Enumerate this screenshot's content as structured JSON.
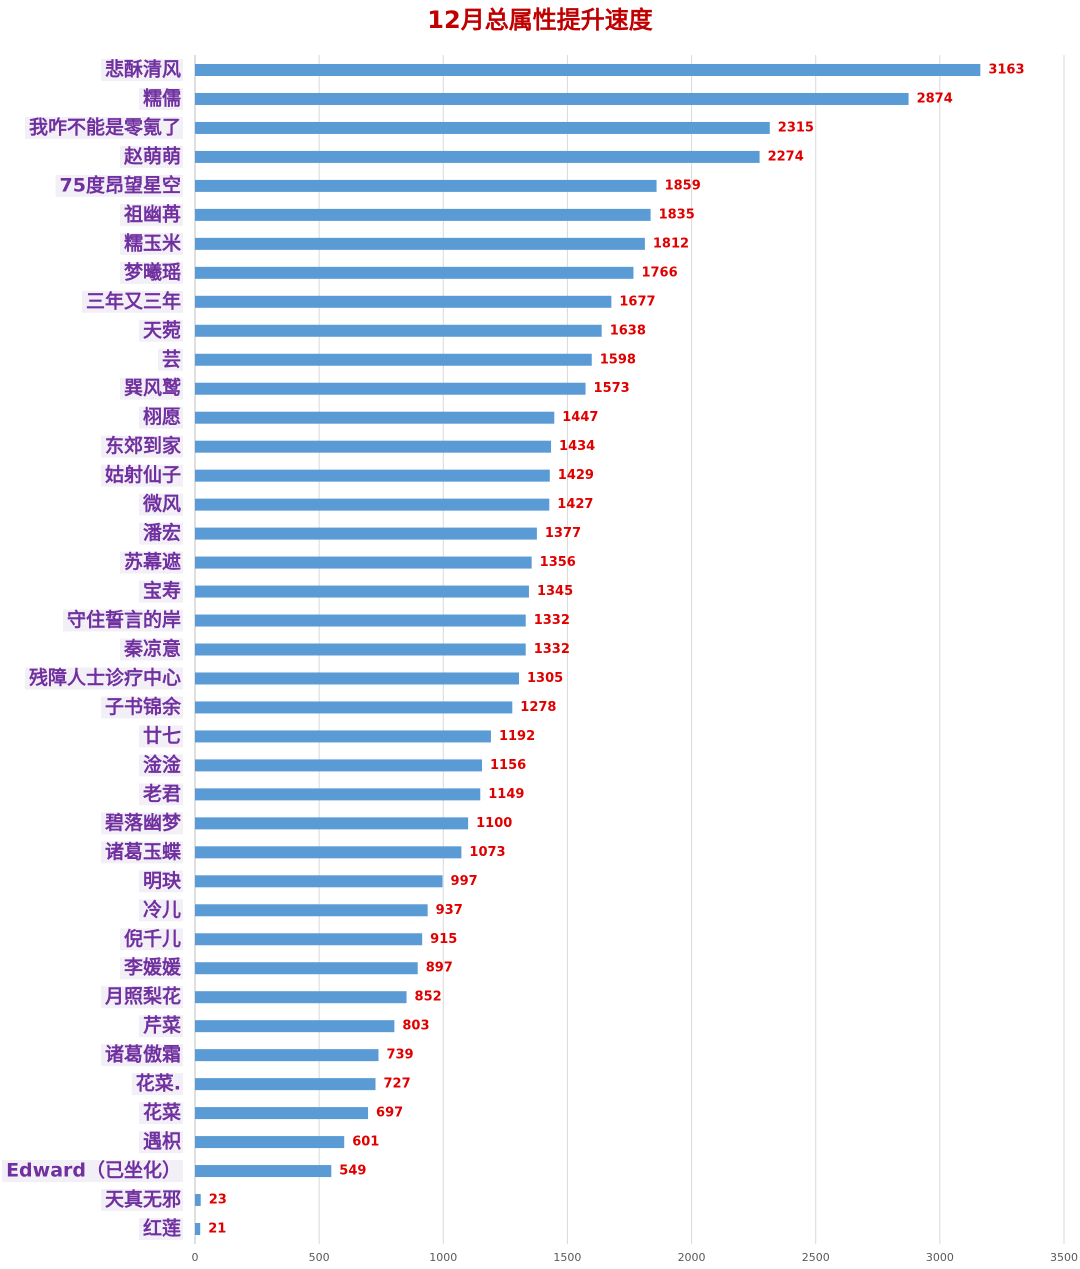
{
  "chart_data": {
    "type": "bar",
    "orientation": "horizontal",
    "title": "12月总属性提升速度",
    "categories": [
      "悲酥清风",
      "糯儒",
      "我咋不能是零氪了",
      "赵萌萌",
      "75度昂望星空",
      "祖幽苒",
      "糯玉米",
      "梦曦瑶",
      "三年又三年",
      "天菀",
      "芸",
      "巽风鹫",
      "栩愿",
      "东郊到家",
      "姑射仙子",
      "微风",
      "潘宏",
      "苏幕遮",
      "宝寿",
      "守住誓言的岸",
      "秦凉意",
      "残障人士诊疗中心",
      "子书锦余",
      "廿七",
      "淦淦",
      "老君",
      "碧落幽梦",
      "诸葛玉蝶",
      "明玦",
      "冷儿",
      "倪千儿",
      "李媛媛",
      "月照梨花",
      "芹菜",
      "诸葛傲霜",
      "花菜.",
      "花菜",
      "遇枳",
      "Edward（已坐化）",
      "天真无邪",
      "红莲"
    ],
    "values": [
      3163,
      2874,
      2315,
      2274,
      1859,
      1835,
      1812,
      1766,
      1677,
      1638,
      1598,
      1573,
      1447,
      1434,
      1429,
      1427,
      1377,
      1356,
      1345,
      1332,
      1332,
      1305,
      1278,
      1192,
      1156,
      1149,
      1100,
      1073,
      997,
      937,
      915,
      897,
      852,
      803,
      739,
      727,
      697,
      601,
      549,
      23,
      21
    ],
    "color": "#5b9bd5",
    "value_color": "#e00000",
    "label_color": "#7030a0",
    "xlim": [
      0,
      3500
    ],
    "xticks": [
      0,
      500,
      1000,
      1500,
      2000,
      2500,
      3000,
      3500
    ],
    "grid": true
  }
}
